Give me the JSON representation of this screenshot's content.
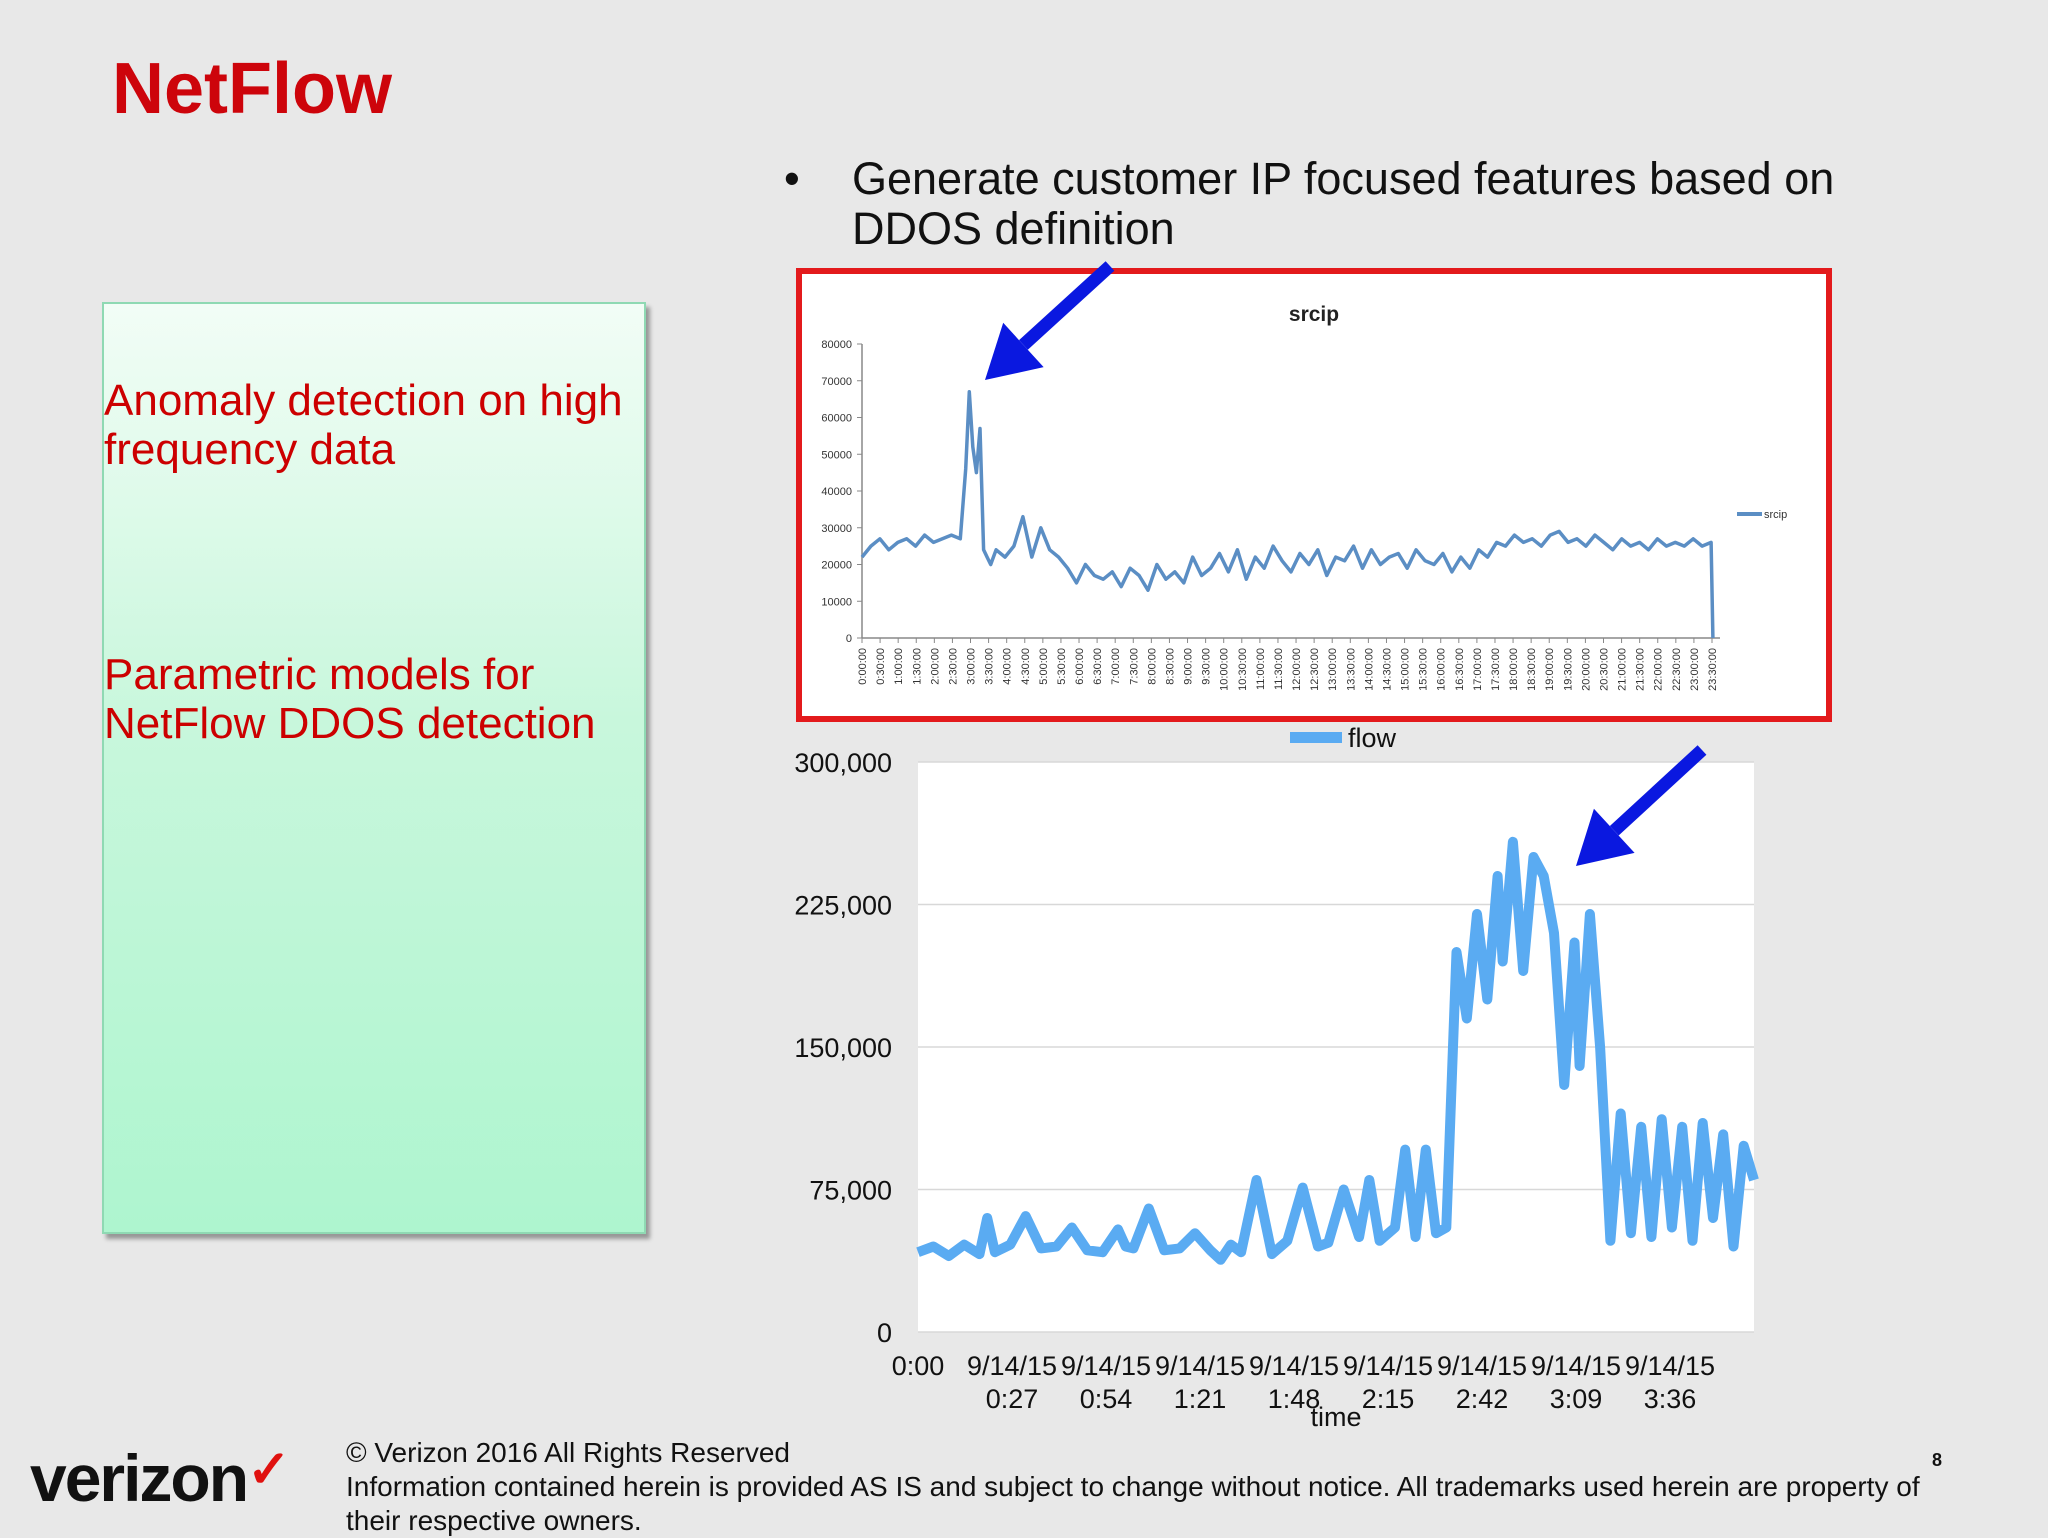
{
  "slide": {
    "title": "NetFlow",
    "bullet_char": "•",
    "bullet_text": "Generate customer IP focused features based on DDOS definition",
    "box_items": [
      "Anomaly detection on high frequency data",
      "Parametric models for NetFlow DDOS detection"
    ],
    "footer_logo": "verizon",
    "footer_check": "✓",
    "footer_copyright": "© Verizon 2016 All Rights Reserved",
    "footer_notice": "Information contained herein is provided AS IS and subject to change without notice.  All trademarks used herein are property of their respective owners.",
    "page_number": "8"
  },
  "colors": {
    "title_red": "#cd040b",
    "highlight_border": "#e31a1c",
    "arrow_blue": "#0a18e0",
    "srcip_line": "#5b8ec4",
    "flow_line": "#5aabf2"
  },
  "chart_data": [
    {
      "type": "line",
      "title": "srcip",
      "legend": "srcip",
      "legend_position": "right",
      "yticks": [
        "80000",
        "70000",
        "60000",
        "50000",
        "40000",
        "30000",
        "20000",
        "10000",
        "0"
      ],
      "ylim": [
        0,
        80000
      ],
      "x_ticks": [
        "0:00:00",
        "0:30:00",
        "1:00:00",
        "1:30:00",
        "2:00:00",
        "2:30:00",
        "3:00:00",
        "3:30:00",
        "4:00:00",
        "4:30:00",
        "5:00:00",
        "5:30:00",
        "6:00:00",
        "6:30:00",
        "7:00:00",
        "7:30:00",
        "8:00:00",
        "8:30:00",
        "9:00:00",
        "9:30:00",
        "10:00:00",
        "10:30:00",
        "11:00:00",
        "11:30:00",
        "12:00:00",
        "12:30:00",
        "13:00:00",
        "13:30:00",
        "14:00:00",
        "14:30:00",
        "15:00:00",
        "15:30:00",
        "16:00:00",
        "16:30:00",
        "17:00:00",
        "17:30:00",
        "18:00:00",
        "18:30:00",
        "19:00:00",
        "19:30:00",
        "20:00:00",
        "20:30:00",
        "21:00:00",
        "21:30:00",
        "22:00:00",
        "22:30:00",
        "23:00:00",
        "23:30:00"
      ],
      "x_hours": [
        0,
        0.25,
        0.5,
        0.75,
        1,
        1.25,
        1.5,
        1.75,
        2,
        2.25,
        2.5,
        2.75,
        2.9,
        3.0,
        3.1,
        3.2,
        3.3,
        3.4,
        3.5,
        3.6,
        3.75,
        4,
        4.25,
        4.5,
        4.75,
        5,
        5.25,
        5.5,
        5.75,
        6,
        6.25,
        6.5,
        6.75,
        7,
        7.25,
        7.5,
        7.75,
        8,
        8.25,
        8.5,
        8.75,
        9,
        9.25,
        9.5,
        9.75,
        10,
        10.25,
        10.5,
        10.75,
        11,
        11.25,
        11.5,
        11.75,
        12,
        12.25,
        12.5,
        12.75,
        13,
        13.25,
        13.5,
        13.75,
        14,
        14.25,
        14.5,
        14.75,
        15,
        15.25,
        15.5,
        15.75,
        16,
        16.25,
        16.5,
        16.75,
        17,
        17.25,
        17.5,
        17.75,
        18,
        18.25,
        18.5,
        18.75,
        19,
        19.25,
        19.5,
        19.75,
        20,
        20.25,
        20.5,
        20.75,
        21,
        21.25,
        21.5,
        21.75,
        22,
        22.25,
        22.5,
        22.75,
        23,
        23.25,
        23.5,
        23.75,
        23.8
      ],
      "values": [
        22000,
        25000,
        27000,
        24000,
        26000,
        27000,
        25000,
        28000,
        26000,
        27000,
        28000,
        27000,
        46000,
        67000,
        52000,
        45000,
        57000,
        24000,
        22000,
        20000,
        24000,
        22000,
        25000,
        33000,
        22000,
        30000,
        24000,
        22000,
        19000,
        15000,
        20000,
        17000,
        16000,
        18000,
        14000,
        19000,
        17000,
        13000,
        20000,
        16000,
        18000,
        15000,
        22000,
        17000,
        19000,
        23000,
        18000,
        24000,
        16000,
        22000,
        19000,
        25000,
        21000,
        18000,
        23000,
        20000,
        24000,
        17000,
        22000,
        21000,
        25000,
        19000,
        24000,
        20000,
        22000,
        23000,
        19000,
        24000,
        21000,
        20000,
        23000,
        18000,
        22000,
        19000,
        24000,
        22000,
        26000,
        25000,
        28000,
        26000,
        27000,
        25000,
        28000,
        29000,
        26000,
        27000,
        25000,
        28000,
        26000,
        24000,
        27000,
        25000,
        26000,
        24000,
        27000,
        25000,
        26000,
        25000,
        27000,
        25000,
        26000,
        0
      ]
    },
    {
      "type": "line",
      "legend": "flow",
      "legend_position": "top",
      "xlabel": "time",
      "yticks": [
        "300,000",
        "225,000",
        "150,000",
        "75,000",
        "0"
      ],
      "ylim": [
        0,
        300000
      ],
      "x_ticks": [
        [
          "0:00",
          ""
        ],
        [
          "9/14/15",
          "0:27"
        ],
        [
          "9/14/15",
          "0:54"
        ],
        [
          "9/14/15",
          "1:21"
        ],
        [
          "9/14/15",
          "1:48"
        ],
        [
          "9/14/15",
          "2:15"
        ],
        [
          "9/14/15",
          "2:42"
        ],
        [
          "9/14/15",
          "3:09"
        ],
        [
          "9/14/15",
          "3:36"
        ]
      ],
      "x_minutes": [
        0,
        6,
        12,
        18,
        24,
        27,
        30,
        36,
        42,
        48,
        54,
        60,
        66,
        72,
        78,
        81,
        84,
        90,
        96,
        102,
        108,
        114,
        118,
        122,
        126,
        132,
        138,
        144,
        150,
        156,
        160,
        166,
        172,
        176,
        180,
        186,
        190,
        194,
        198,
        202,
        206,
        210,
        214,
        218,
        222,
        226,
        228,
        232,
        236,
        240,
        244,
        248,
        252,
        256,
        258,
        262,
        266,
        270,
        274,
        278,
        282,
        286,
        290,
        294,
        298,
        302,
        306,
        310,
        314,
        318,
        322,
        326
      ],
      "values": [
        42000,
        45000,
        40000,
        46000,
        41000,
        60000,
        42000,
        46000,
        61000,
        44000,
        45000,
        55000,
        43000,
        42000,
        54000,
        45000,
        44000,
        65000,
        43000,
        44000,
        52000,
        43000,
        38000,
        46000,
        42000,
        80000,
        41000,
        48000,
        76000,
        45000,
        47000,
        75000,
        50000,
        80000,
        48000,
        55000,
        96000,
        50000,
        96000,
        52000,
        55000,
        200000,
        165000,
        220000,
        175000,
        240000,
        195000,
        258000,
        190000,
        250000,
        240000,
        210000,
        130000,
        205000,
        140000,
        220000,
        150000,
        48000,
        115000,
        52000,
        108000,
        50000,
        112000,
        55000,
        108000,
        48000,
        110000,
        60000,
        104000,
        45000,
        98000,
        80000
      ]
    }
  ]
}
